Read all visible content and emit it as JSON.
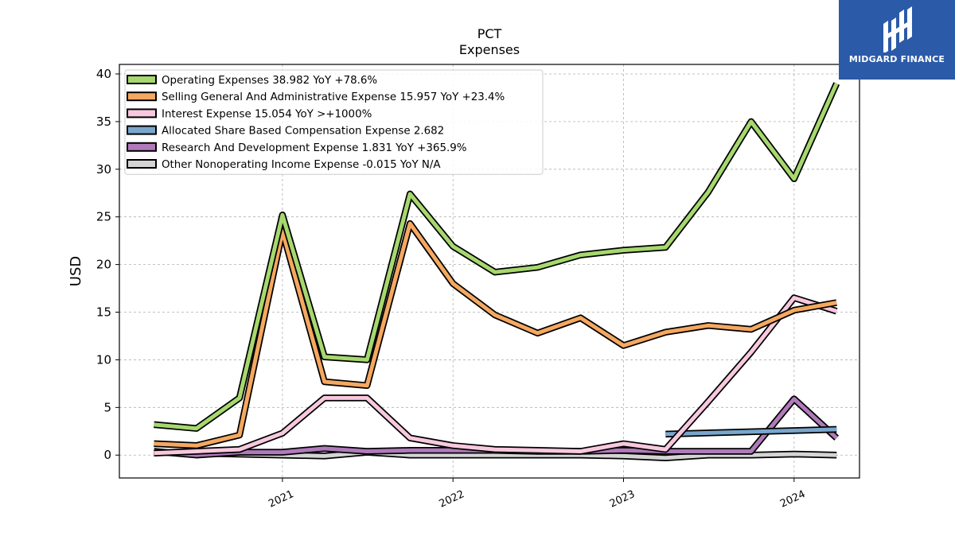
{
  "logo": {
    "text": "MIDGARD FINANCE",
    "color": "#2b5aa8"
  },
  "chart_data": {
    "type": "line",
    "title": "PCT",
    "subtitle": "Expenses",
    "xlabel": "",
    "ylabel": "USD",
    "ylim": [
      -2.4,
      41
    ],
    "xlim": [
      "2020-01-18",
      "2024-05-20"
    ],
    "yticks": [
      0,
      5,
      10,
      15,
      20,
      25,
      30,
      35,
      40
    ],
    "xticks": [
      "2021-01-01",
      "2022-01-01",
      "2023-01-01",
      "2024-01-01"
    ],
    "xtick_labels": [
      "2021",
      "2022",
      "2023",
      "2024"
    ],
    "grid": true,
    "legend_position": "top-left",
    "series": [
      {
        "name": "Other Nonoperating Income Expense",
        "legend": "Other Nonoperating Income Expense  -0.015 YoY N/A",
        "color": "#d4d4d4",
        "x": [
          "2020-07-01",
          "2021-04-01",
          "2021-07-01",
          "2021-10-01",
          "2022-01-01",
          "2022-04-01",
          "2022-07-01",
          "2022-10-01",
          "2023-01-01",
          "2023-04-01",
          "2023-07-01",
          "2023-10-01",
          "2024-01-01",
          "2024-04-01"
        ],
        "y": [
          0.2,
          -0.1,
          0.3,
          0.0,
          0.0,
          0.0,
          0.0,
          0.0,
          -0.1,
          -0.3,
          0.0,
          0.0,
          0.1,
          0.0
        ]
      },
      {
        "name": "Research And Development Expense",
        "legend": "Research And Development Expense  1.831 YoY +365.9%",
        "color": "#b07aba",
        "x": [
          "2020-04-01",
          "2020-07-01",
          "2020-10-01",
          "2021-01-01",
          "2021-04-01",
          "2021-07-01",
          "2021-10-01",
          "2022-01-01",
          "2022-04-01",
          "2022-07-01",
          "2022-10-01",
          "2023-01-01",
          "2023-04-01",
          "2023-07-01",
          "2023-10-01",
          "2024-01-01",
          "2024-04-01"
        ],
        "y": [
          0.4,
          0.0,
          0.3,
          0.3,
          0.7,
          0.4,
          0.5,
          0.5,
          0.5,
          0.4,
          0.4,
          0.5,
          0.4,
          0.4,
          0.4,
          5.9,
          1.8
        ]
      },
      {
        "name": "Allocated Share Based Compensation Expense",
        "legend": "Allocated Share Based Compensation Expense  2.682",
        "color": "#7aa6cc",
        "x": [
          "2023-04-01",
          "2024-04-01"
        ],
        "y": [
          2.2,
          2.7
        ]
      },
      {
        "name": "Interest Expense",
        "legend": "Interest Expense  15.054 YoY >+1000%",
        "color": "#f8c8de",
        "x": [
          "2020-04-01",
          "2020-07-01",
          "2020-10-01",
          "2021-01-01",
          "2021-04-01",
          "2021-07-01",
          "2021-10-01",
          "2022-01-01",
          "2022-04-01",
          "2022-07-01",
          "2022-10-01",
          "2023-01-01",
          "2023-04-01",
          "2023-07-01",
          "2023-10-01",
          "2024-01-01",
          "2024-04-01"
        ],
        "y": [
          0.2,
          0.4,
          0.6,
          2.3,
          6.0,
          6.0,
          1.8,
          1.0,
          0.6,
          0.5,
          0.4,
          1.2,
          0.6,
          5.6,
          10.8,
          16.5,
          15.1
        ]
      },
      {
        "name": "Selling General And Administrative Expense",
        "legend": "Selling General And Administrative Expense  15.957 YoY +23.4%",
        "color": "#f5a860",
        "x": [
          "2020-04-01",
          "2020-07-01",
          "2020-10-01",
          "2021-01-01",
          "2021-04-01",
          "2021-07-01",
          "2021-10-01",
          "2022-01-01",
          "2022-04-01",
          "2022-07-01",
          "2022-10-01",
          "2023-01-01",
          "2023-04-01",
          "2023-07-01",
          "2023-10-01",
          "2024-01-01",
          "2024-04-01"
        ],
        "y": [
          1.2,
          1.0,
          2.1,
          23.5,
          7.7,
          7.3,
          24.3,
          18.0,
          14.7,
          12.8,
          14.4,
          11.5,
          12.9,
          13.6,
          13.2,
          15.2,
          16.0
        ]
      },
      {
        "name": "Operating Expenses",
        "legend": "Operating Expenses  38.982 YoY +78.6%",
        "color": "#a6d86e",
        "x": [
          "2020-04-01",
          "2020-07-01",
          "2020-10-01",
          "2021-01-01",
          "2021-04-01",
          "2021-07-01",
          "2021-10-01",
          "2022-01-01",
          "2022-04-01",
          "2022-07-01",
          "2022-10-01",
          "2023-01-01",
          "2023-04-01",
          "2023-07-01",
          "2023-10-01",
          "2024-01-01",
          "2024-04-01"
        ],
        "y": [
          3.2,
          2.8,
          6.0,
          25.2,
          10.3,
          10.0,
          27.4,
          21.9,
          19.2,
          19.7,
          21.0,
          21.5,
          21.8,
          27.6,
          35.0,
          29.0,
          39.0
        ]
      }
    ],
    "legend_order": [
      "Operating Expenses",
      "Selling General And Administrative Expense",
      "Interest Expense",
      "Allocated Share Based Compensation Expense",
      "Research And Development Expense",
      "Other Nonoperating Income Expense"
    ]
  }
}
